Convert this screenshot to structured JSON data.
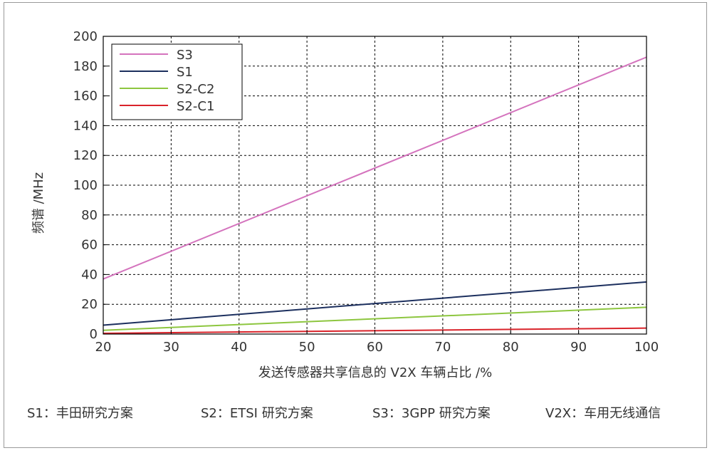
{
  "chart_data": {
    "type": "line",
    "title": "",
    "xlabel": "发送传感器共享信息的 V2X 车辆占比 /%",
    "ylabel": "频谱 /MHz",
    "xlim": [
      20,
      100
    ],
    "ylim": [
      0,
      200
    ],
    "xticks": [
      20,
      30,
      40,
      50,
      60,
      70,
      80,
      90,
      100
    ],
    "yticks": [
      0,
      20,
      40,
      60,
      80,
      100,
      120,
      140,
      160,
      180,
      200
    ],
    "grid": true,
    "legend_position": "top-left",
    "series": [
      {
        "name": "S3",
        "color": "#d473bd",
        "x": [
          20,
          100
        ],
        "y": [
          37,
          186
        ]
      },
      {
        "name": "S1",
        "color": "#1c2f5e",
        "x": [
          20,
          100
        ],
        "y": [
          6,
          35
        ]
      },
      {
        "name": "S2-C2",
        "color": "#8dc63f",
        "x": [
          20,
          100
        ],
        "y": [
          2.5,
          18
        ]
      },
      {
        "name": "S2-C1",
        "color": "#d9232a",
        "x": [
          20,
          100
        ],
        "y": [
          0.5,
          4
        ]
      }
    ]
  },
  "footnotes": [
    "S1：丰田研究方案",
    "S2：ETSI 研究方案",
    "S3：3GPP 研究方案",
    "V2X：车用无线通信"
  ]
}
